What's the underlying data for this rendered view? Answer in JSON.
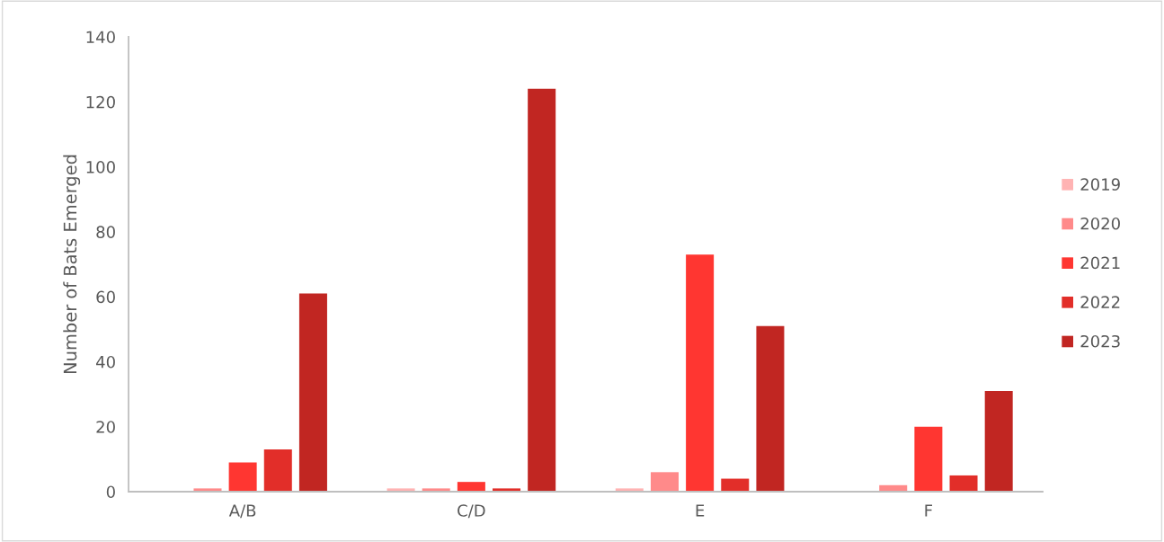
{
  "chart_data": {
    "type": "bar",
    "ylabel": "Number of Bats Emerged",
    "categories": [
      "A/B",
      "C/D",
      "E",
      "F"
    ],
    "series": [
      {
        "name": "2019",
        "color": "#ffb3b3",
        "values": [
          0,
          1,
          1,
          0
        ]
      },
      {
        "name": "2020",
        "color": "#ff8a8a",
        "values": [
          1,
          1,
          6,
          2
        ]
      },
      {
        "name": "2021",
        "color": "#ff3631",
        "values": [
          9,
          3,
          73,
          20
        ]
      },
      {
        "name": "2022",
        "color": "#e22e29",
        "values": [
          13,
          1,
          4,
          5
        ]
      },
      {
        "name": "2023",
        "color": "#c12622",
        "values": [
          61,
          124,
          51,
          31
        ]
      }
    ],
    "ylim": [
      0,
      140
    ],
    "yticks": [
      0,
      20,
      40,
      60,
      80,
      100,
      120,
      140
    ],
    "grid": false,
    "legend": "right"
  }
}
